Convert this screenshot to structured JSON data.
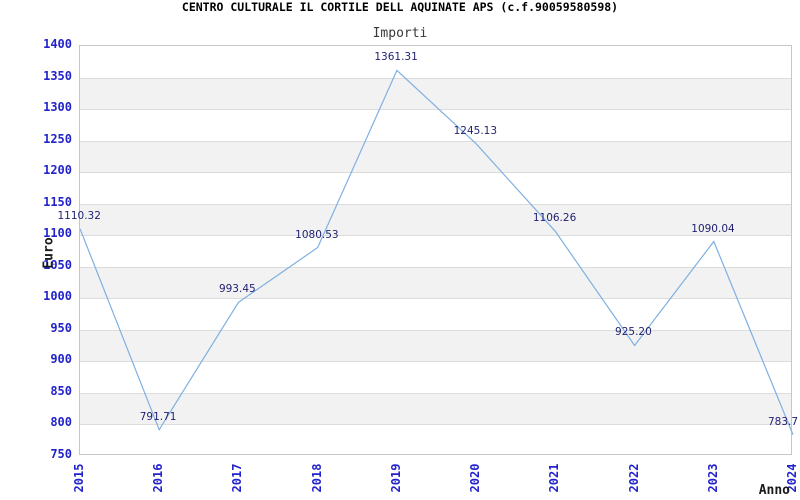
{
  "chart_data": {
    "type": "line",
    "title": "CENTRO CULTURALE IL CORTILE DELL AQUINATE APS (c.f.90059580598)",
    "subtitle": "Importi",
    "xlabel": "Anno",
    "ylabel": "Euro",
    "x": [
      "2015",
      "2016",
      "2017",
      "2018",
      "2019",
      "2020",
      "2021",
      "2022",
      "2023",
      "2024"
    ],
    "values": [
      1110.32,
      791.71,
      993.45,
      1080.53,
      1361.31,
      1245.13,
      1106.26,
      925.2,
      1090.04,
      783.7
    ],
    "point_labels": [
      "1110.32",
      "791.71",
      "993.45",
      "1080.53",
      "1361.31",
      "1245.13",
      "1106.26",
      "925.20",
      "1090.04",
      "783.7"
    ],
    "ylim": [
      750,
      1400
    ],
    "ytick_step": 50,
    "yticks": [
      750,
      800,
      850,
      900,
      950,
      1000,
      1050,
      1100,
      1150,
      1200,
      1250,
      1300,
      1350,
      1400
    ],
    "grid": true,
    "legend": "none",
    "colors": {
      "line": "#7fb0e2",
      "tick_label": "#2323cd",
      "point_label": "#1f1f72",
      "band": "#f2f2f2",
      "gridline": "#dcdcdc",
      "plot_border": "#c6c6c6",
      "title": "#000000",
      "subtitle": "#3a3a3a",
      "axis_label": "#1a1a1a",
      "background": "#ffffff"
    }
  }
}
